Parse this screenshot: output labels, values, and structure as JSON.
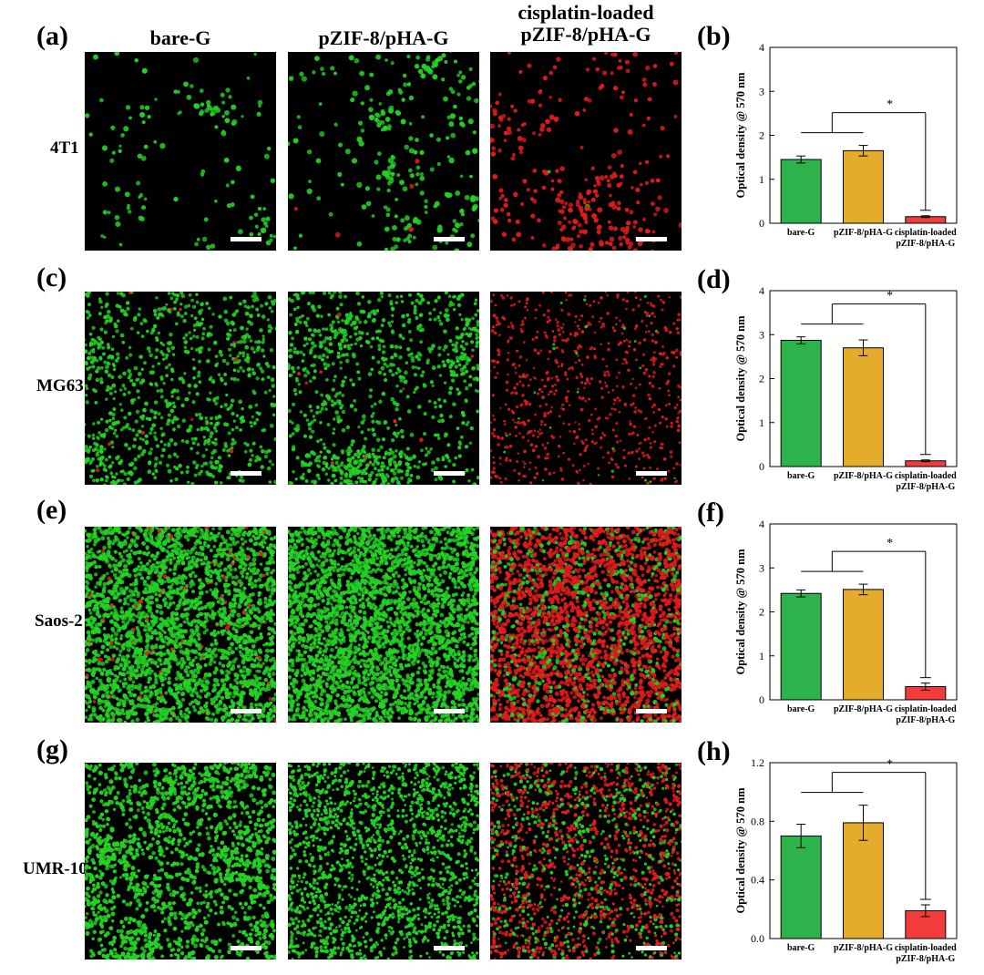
{
  "figure": {
    "columns": [
      "bare-G",
      "pZIF-8/pHA-G",
      "cisplatin-loaded pZIF-8/pHA-G"
    ],
    "column_header_lines": [
      [
        "bare-G"
      ],
      [
        "pZIF-8/pHA-G"
      ],
      [
        "cisplatin-loaded",
        "pZIF-8/pHA-G"
      ]
    ],
    "rows": [
      {
        "cell_line": "4T1",
        "image_label": "(a)",
        "chart_label": "(b)"
      },
      {
        "cell_line": "MG63",
        "image_label": "(c)",
        "chart_label": "(d)"
      },
      {
        "cell_line": "Saos-2",
        "image_label": "(e)",
        "chart_label": "(f)"
      },
      {
        "cell_line": "UMR-106",
        "image_label": "(g)",
        "chart_label": "(h)"
      }
    ],
    "colors": {
      "live_green": "#23d323",
      "dead_red": "#e11c1c",
      "background": "#000000"
    }
  },
  "chart_data": [
    {
      "type": "bar",
      "panel": "(b)",
      "categories": [
        [
          "bare-G"
        ],
        [
          "pZIF-8/pHA-G"
        ],
        [
          "cisplatin-loaded",
          "pZIF-8/pHA-G"
        ]
      ],
      "values": [
        1.45,
        1.65,
        0.15
      ],
      "errors": [
        0.08,
        0.12,
        0.02
      ],
      "colors": [
        "#2eb24b",
        "#e5ac2c",
        "#f23c3c"
      ],
      "ylabel": "Optical density @ 570 nm",
      "ylim": [
        0,
        4
      ],
      "yticks": [
        "0",
        "1",
        "2",
        "3",
        "4"
      ],
      "significance": "*"
    },
    {
      "type": "bar",
      "panel": "(d)",
      "categories": [
        [
          "bare-G"
        ],
        [
          "pZIF-8/pHA-G"
        ],
        [
          "cisplatin-loaded",
          "pZIF-8/pHA-G"
        ]
      ],
      "values": [
        2.87,
        2.7,
        0.13
      ],
      "errors": [
        0.08,
        0.18,
        0.02
      ],
      "colors": [
        "#2eb24b",
        "#e5ac2c",
        "#f23c3c"
      ],
      "ylabel": "Optical density @ 570 nm",
      "ylim": [
        0,
        4
      ],
      "yticks": [
        "0",
        "1",
        "2",
        "3",
        "4"
      ],
      "significance": "*"
    },
    {
      "type": "bar",
      "panel": "(f)",
      "categories": [
        [
          "bare-G"
        ],
        [
          "pZIF-8/pHA-G"
        ],
        [
          "cisplatin-loaded",
          "pZIF-8/pHA-G"
        ]
      ],
      "values": [
        2.42,
        2.51,
        0.3
      ],
      "errors": [
        0.08,
        0.12,
        0.08
      ],
      "colors": [
        "#2eb24b",
        "#e5ac2c",
        "#f23c3c"
      ],
      "ylabel": "Optical density @ 570 nm",
      "ylim": [
        0,
        4
      ],
      "yticks": [
        "0",
        "1",
        "2",
        "3",
        "4"
      ],
      "significance": "*"
    },
    {
      "type": "bar",
      "panel": "(h)",
      "categories": [
        [
          "bare-G"
        ],
        [
          "pZIF-8/pHA-G"
        ],
        [
          "cisplatin-loaded",
          "pZIF-8/pHA-G"
        ]
      ],
      "values": [
        0.7,
        0.79,
        0.19
      ],
      "errors": [
        0.08,
        0.12,
        0.04
      ],
      "colors": [
        "#2eb24b",
        "#e5ac2c",
        "#f23c3c"
      ],
      "ylabel": "Optical density @ 570 nm",
      "ylim": [
        0,
        1.2
      ],
      "yticks": [
        "0.0",
        "0.4",
        "0.8",
        "1.2"
      ],
      "significance": "*"
    }
  ]
}
